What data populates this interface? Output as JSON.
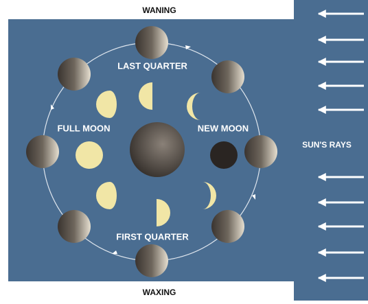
{
  "labels": {
    "top": "WANING",
    "bottom": "WAXING",
    "last_quarter": "LAST QUARTER",
    "first_quarter": "FIRST QUARTER",
    "full_moon": "FULL MOON",
    "new_moon": "NEW MOON",
    "sun": "SUN'S RAYS"
  }
}
